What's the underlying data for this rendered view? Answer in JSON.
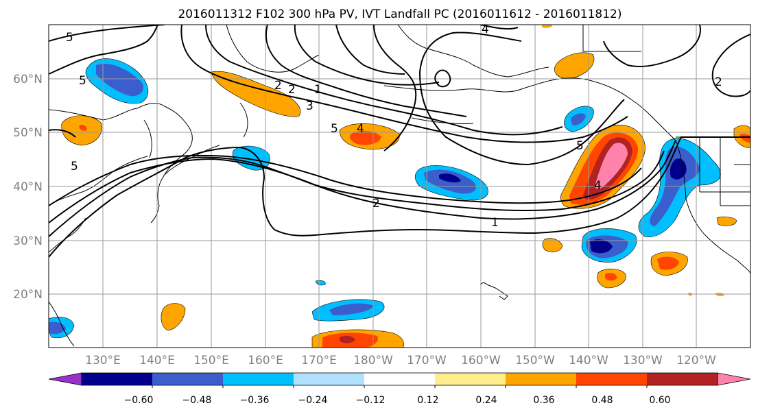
{
  "title": "2016011312 F102 300 hPa PV, IVT Landfall PC (2016011612 - 2016011812)",
  "latitude_labels": [
    "60°N",
    "50°N",
    "40°N",
    "30°N",
    "20°N"
  ],
  "longitude_labels": [
    "130°E",
    "140°E",
    "150°E",
    "160°E",
    "170°E",
    "180°W",
    "170°W",
    "160°W",
    "150°W",
    "140°W",
    "130°W",
    "120°W"
  ],
  "contour_labels": [
    "5",
    "5",
    "5",
    "4",
    "2",
    "1",
    "2",
    "3",
    "5",
    "4",
    "5",
    "2",
    "1",
    "2",
    "4"
  ],
  "colorbar": {
    "tick_labels": [
      "−0.60",
      "−0.48",
      "−0.36",
      "−0.24",
      "−0.12",
      "0.12",
      "0.24",
      "0.36",
      "0.48",
      "0.60"
    ],
    "colors": [
      "#9932cc",
      "#00008b",
      "#3a5fcd",
      "#00bfff",
      "#b0e2ff",
      "#ffffff",
      "#ffec8b",
      "#ffa500",
      "#ff4500",
      "#b22222",
      "#ff82ab"
    ]
  }
}
